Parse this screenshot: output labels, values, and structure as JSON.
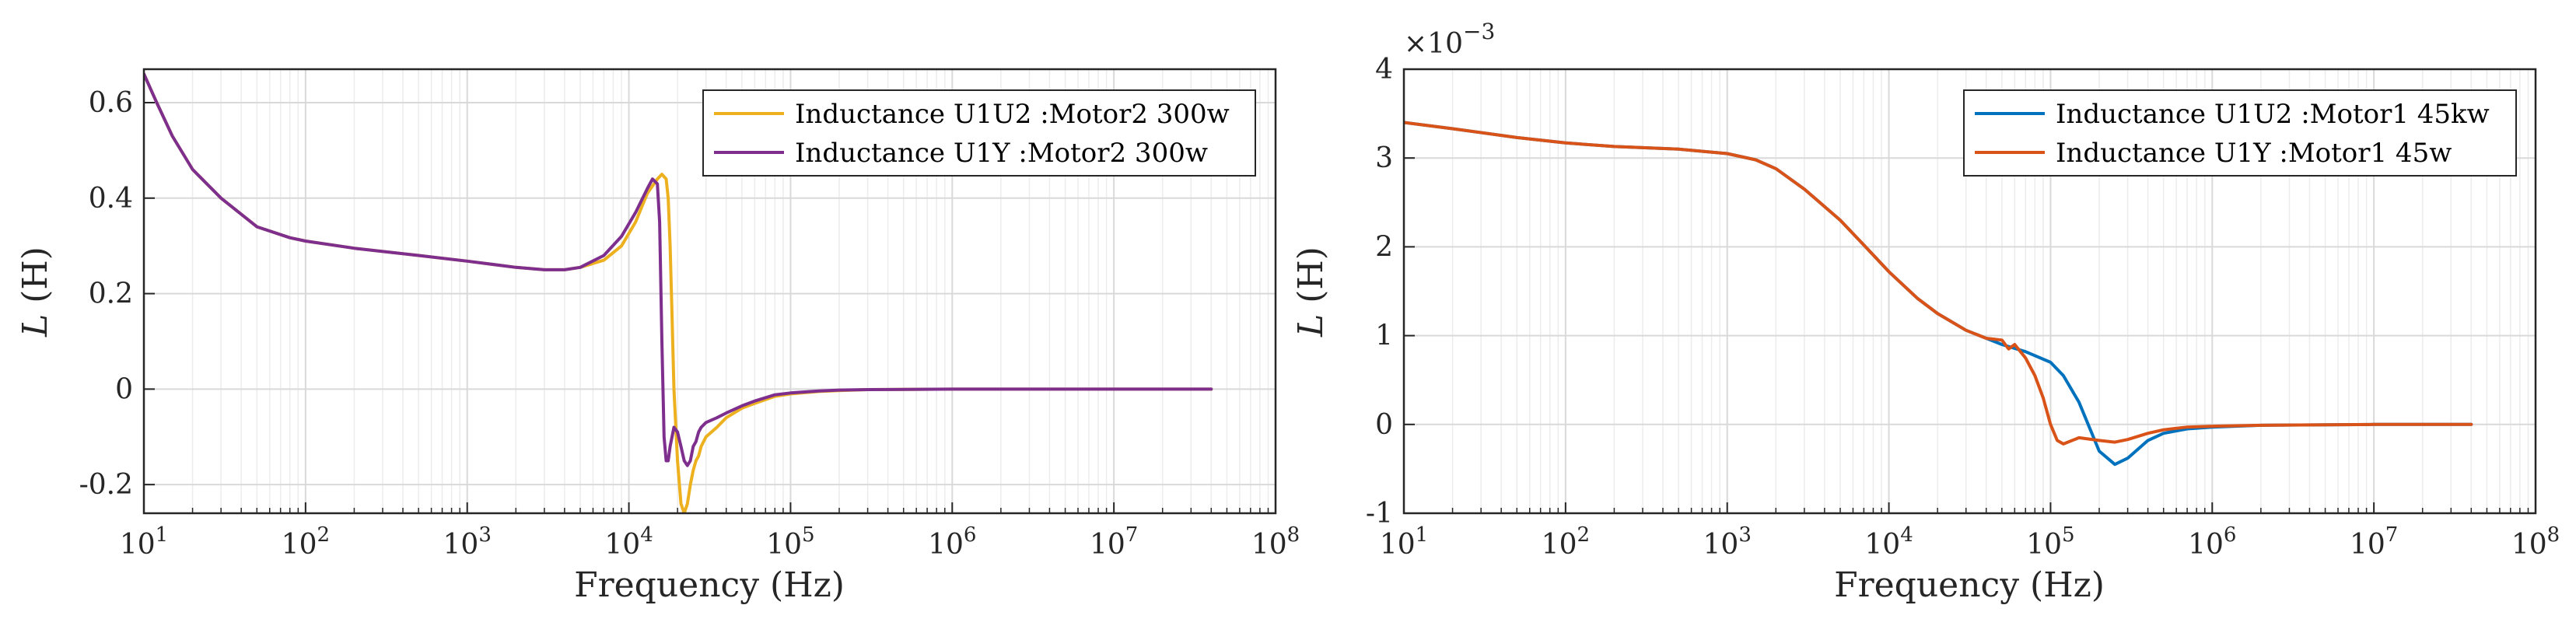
{
  "chart_data": [
    {
      "type": "line",
      "xscale": "log",
      "xlim": [
        10,
        100000000
      ],
      "ylim": [
        -0.26,
        0.67
      ],
      "yticks": [
        -0.2,
        0,
        0.2,
        0.4,
        0.6
      ],
      "ytick_labels": [
        "-0.2",
        "0",
        "0.2",
        "0.4",
        "0.6"
      ],
      "xticks": [
        10,
        100,
        1000,
        10000,
        100000,
        1000000,
        10000000,
        100000000
      ],
      "xtick_bases": [
        "10",
        "10",
        "10",
        "10",
        "10",
        "10",
        "10",
        "10"
      ],
      "xtick_exps": [
        "1",
        "2",
        "3",
        "4",
        "5",
        "6",
        "7",
        "8"
      ],
      "xlabel": "Frequency (Hz)",
      "ylabel_italic": "L",
      "ylabel_rest": " (H)",
      "grid": true,
      "legend_position": "top-right",
      "series": [
        {
          "name": "Inductance U1U2 :Motor2 300w",
          "color": "#EDB120",
          "x": [
            10,
            12,
            15,
            20,
            30,
            50,
            80,
            100,
            200,
            500,
            1000,
            2000,
            3000,
            4000,
            5000,
            7000,
            9000,
            11000,
            13000,
            15000,
            16000,
            17000,
            17500,
            18000,
            18500,
            19000,
            20000,
            21000,
            22000,
            23000,
            24000,
            25000,
            26000,
            27000,
            28000,
            30000,
            35000,
            40000,
            50000,
            60000,
            80000,
            100000,
            150000,
            200000,
            300000,
            1000000,
            10000000,
            40000000
          ],
          "y": [
            0.66,
            0.6,
            0.53,
            0.46,
            0.4,
            0.34,
            0.317,
            0.31,
            0.295,
            0.28,
            0.268,
            0.255,
            0.25,
            0.25,
            0.255,
            0.27,
            0.3,
            0.35,
            0.41,
            0.44,
            0.45,
            0.44,
            0.4,
            0.3,
            0.15,
            0.0,
            -0.15,
            -0.24,
            -0.26,
            -0.24,
            -0.2,
            -0.17,
            -0.15,
            -0.14,
            -0.12,
            -0.1,
            -0.08,
            -0.06,
            -0.04,
            -0.03,
            -0.015,
            -0.01,
            -0.005,
            -0.003,
            -0.001,
            0.0,
            0.0,
            0.0
          ]
        },
        {
          "name": "Inductance U1Y :Motor2 300w",
          "color": "#7E2F8E",
          "x": [
            10,
            12,
            15,
            20,
            30,
            50,
            80,
            100,
            200,
            500,
            1000,
            2000,
            3000,
            4000,
            5000,
            7000,
            9000,
            11000,
            13000,
            14000,
            15000,
            15500,
            16000,
            16500,
            17000,
            17500,
            18000,
            19000,
            20000,
            21000,
            22000,
            23000,
            24000,
            25000,
            26000,
            27000,
            28000,
            30000,
            35000,
            40000,
            50000,
            60000,
            80000,
            100000,
            150000,
            200000,
            300000,
            1000000,
            10000000,
            40000000
          ],
          "y": [
            0.66,
            0.6,
            0.53,
            0.46,
            0.4,
            0.34,
            0.317,
            0.31,
            0.295,
            0.28,
            0.268,
            0.255,
            0.25,
            0.25,
            0.255,
            0.28,
            0.32,
            0.37,
            0.42,
            0.44,
            0.43,
            0.35,
            0.1,
            -0.1,
            -0.15,
            -0.15,
            -0.12,
            -0.08,
            -0.09,
            -0.12,
            -0.15,
            -0.16,
            -0.15,
            -0.12,
            -0.11,
            -0.09,
            -0.08,
            -0.07,
            -0.06,
            -0.05,
            -0.035,
            -0.025,
            -0.012,
            -0.008,
            -0.004,
            -0.002,
            -0.001,
            0.0,
            0.0,
            0.0
          ]
        }
      ]
    },
    {
      "type": "line",
      "xscale": "log",
      "xlim": [
        10,
        100000000
      ],
      "ylim": [
        -1,
        4
      ],
      "yticks": [
        -1,
        0,
        1,
        2,
        3,
        4
      ],
      "ytick_labels": [
        "-1",
        "0",
        "1",
        "2",
        "3",
        "4"
      ],
      "y_multiplier_base": "×10",
      "y_multiplier_exp": "−3",
      "xticks": [
        10,
        100,
        1000,
        10000,
        100000,
        1000000,
        10000000,
        100000000
      ],
      "xtick_bases": [
        "10",
        "10",
        "10",
        "10",
        "10",
        "10",
        "10",
        "10"
      ],
      "xtick_exps": [
        "1",
        "2",
        "3",
        "4",
        "5",
        "6",
        "7",
        "8"
      ],
      "xlabel": "Frequency (Hz)",
      "ylabel_italic": "L",
      "ylabel_rest": " (H)",
      "grid": true,
      "legend_position": "top-right",
      "series": [
        {
          "name": "Inductance U1U2 :Motor1 45kw",
          "color": "#0072BD",
          "x": [
            10,
            20,
            50,
            100,
            200,
            500,
            1000,
            1500,
            2000,
            3000,
            5000,
            7000,
            10000,
            15000,
            20000,
            30000,
            40000,
            50000,
            70000,
            100000,
            120000,
            150000,
            180000,
            200000,
            250000,
            300000,
            400000,
            500000,
            700000,
            1000000,
            2000000,
            10000000,
            40000000
          ],
          "y": [
            3.4,
            3.33,
            3.23,
            3.17,
            3.13,
            3.1,
            3.05,
            2.98,
            2.88,
            2.65,
            2.3,
            2.02,
            1.72,
            1.42,
            1.25,
            1.06,
            0.97,
            0.9,
            0.82,
            0.7,
            0.55,
            0.25,
            -0.1,
            -0.3,
            -0.45,
            -0.38,
            -0.18,
            -0.1,
            -0.05,
            -0.03,
            -0.01,
            0.0,
            0.0
          ]
        },
        {
          "name": "Inductance U1Y :Motor1 45w",
          "color": "#D95319",
          "x": [
            10,
            20,
            50,
            100,
            200,
            500,
            1000,
            1500,
            2000,
            3000,
            5000,
            7000,
            10000,
            15000,
            20000,
            30000,
            40000,
            50000,
            55000,
            60000,
            70000,
            80000,
            90000,
            100000,
            110000,
            120000,
            150000,
            200000,
            250000,
            300000,
            400000,
            500000,
            700000,
            1000000,
            2000000,
            10000000,
            40000000
          ],
          "y": [
            3.4,
            3.33,
            3.23,
            3.17,
            3.13,
            3.1,
            3.05,
            2.98,
            2.88,
            2.65,
            2.3,
            2.02,
            1.72,
            1.42,
            1.25,
            1.06,
            0.97,
            0.95,
            0.85,
            0.9,
            0.75,
            0.55,
            0.3,
            0.0,
            -0.18,
            -0.22,
            -0.15,
            -0.18,
            -0.2,
            -0.17,
            -0.1,
            -0.06,
            -0.03,
            -0.02,
            -0.01,
            0.0,
            0.0
          ]
        }
      ]
    }
  ]
}
